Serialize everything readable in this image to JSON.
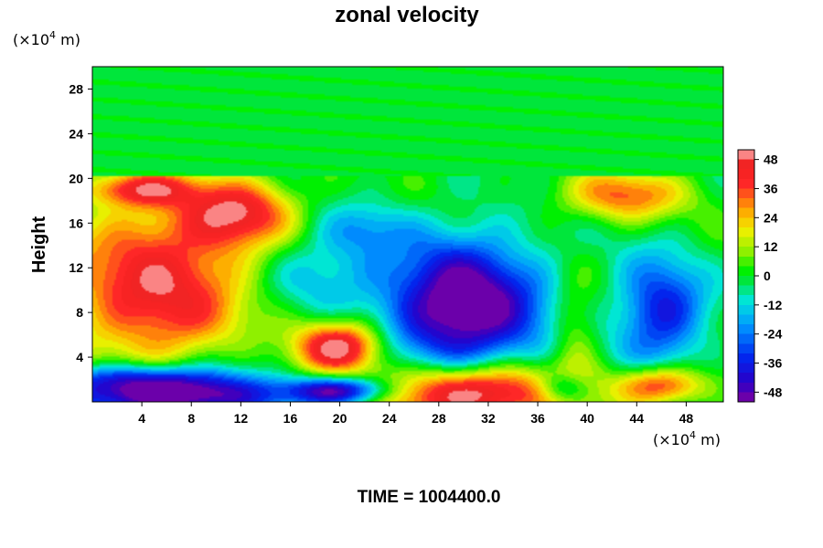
{
  "chart_data": {
    "type": "heatmap",
    "title": "zonal velocity",
    "ylabel": "Height",
    "x_unit": "(×10",
    "x_unit_exp": "4",
    "x_unit_tail": " m)",
    "y_unit": "(×10",
    "y_unit_exp": "4",
    "y_unit_tail": " m)",
    "footer": "TIME = 1004400.0",
    "xlim": [
      0,
      51
    ],
    "ylim": [
      0,
      30
    ],
    "xticks": [
      "4",
      "8",
      "12",
      "16",
      "20",
      "24",
      "28",
      "32",
      "36",
      "40",
      "44",
      "48"
    ],
    "yticks": [
      "4",
      "8",
      "12",
      "16",
      "20",
      "24",
      "28"
    ],
    "colorbar": {
      "range": [
        -52,
        52
      ],
      "ticks": [
        "48",
        "36",
        "24",
        "12",
        "0",
        "-12",
        "-24",
        "-36",
        "-48"
      ]
    },
    "background_value_above_20": -1,
    "features": [
      {
        "x": 5.5,
        "y": 10.5,
        "sx": 5.5,
        "sy": 5.5,
        "value": 46
      },
      {
        "x": 12,
        "y": 17,
        "sx": 3,
        "sy": 2,
        "value": 38
      },
      {
        "x": 4,
        "y": 19,
        "sx": 3,
        "sy": 1,
        "value": 35
      },
      {
        "x": 20,
        "y": 5,
        "sx": 2.5,
        "sy": 1.6,
        "value": 56
      },
      {
        "x": 30.5,
        "y": 0.8,
        "sx": 5.5,
        "sy": 1.8,
        "value": 62
      },
      {
        "x": 30,
        "y": 8.5,
        "sx": 4.5,
        "sy": 4.2,
        "value": -60
      },
      {
        "x": 46,
        "y": 8,
        "sx": 2.5,
        "sy": 3.5,
        "value": -38
      },
      {
        "x": 46,
        "y": 1.5,
        "sx": 2.5,
        "sy": 1.2,
        "value": 42
      },
      {
        "x": 43,
        "y": 18.5,
        "sx": 3.5,
        "sy": 1.6,
        "value": 32
      },
      {
        "x": 6,
        "y": 0.5,
        "sx": 6,
        "sy": 1.3,
        "value": -62
      },
      {
        "x": 20,
        "y": 1,
        "sx": 3,
        "sy": 0.9,
        "value": -55
      },
      {
        "x": 18,
        "y": 11.5,
        "sx": 3.5,
        "sy": 2.5,
        "value": -18
      },
      {
        "x": 22,
        "y": 15.5,
        "sx": 2.5,
        "sy": 1.6,
        "value": -15
      },
      {
        "x": 39,
        "y": 6,
        "sx": 1.4,
        "sy": 3.5,
        "value": 16
      },
      {
        "x": 38,
        "y": 1.2,
        "sx": 1.5,
        "sy": 1,
        "value": -28
      },
      {
        "x": 12,
        "y": 4,
        "sx": 3,
        "sy": 2,
        "value": -10
      },
      {
        "x": 3,
        "y": 2.2,
        "sx": 5,
        "sy": 1,
        "value": -30
      }
    ]
  }
}
